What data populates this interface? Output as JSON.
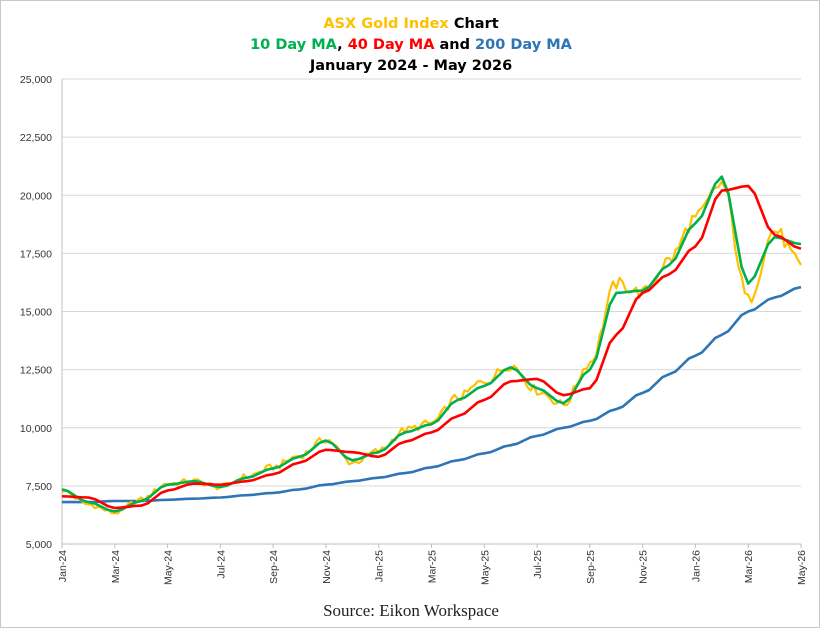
{
  "title": {
    "line1": {
      "highlight": "ASX Gold Index",
      "rest": " Chart"
    },
    "line2": {
      "ma10": "10 Day MA",
      "sep1": ", ",
      "ma40": "40 Day MA",
      "sep2": " and ",
      "ma200": "200 Day MA"
    },
    "line3": "January 2024 - May 2026"
  },
  "source": "Source: Eikon Workspace",
  "colors": {
    "index": "#FFC000",
    "ma10": "#00B050",
    "ma40": "#FF0000",
    "ma200": "#2E75B6",
    "grid": "#d9d9d9",
    "text": "#000000"
  },
  "chart_data": {
    "type": "line",
    "title": "ASX Gold Index Chart",
    "subtitle": "10 Day MA, 40 Day MA and 200 Day MA — January 2024 - May 2026",
    "ylim": [
      5000,
      25000
    ],
    "y_ticks": [
      "5,000",
      "7,500",
      "10,000",
      "12,500",
      "15,000",
      "17,500",
      "20,000",
      "22,500",
      "25,000"
    ],
    "y_tick_values": [
      5000,
      7500,
      10000,
      12500,
      15000,
      17500,
      20000,
      22500,
      25000
    ],
    "x_ticks": [
      "Jan-24",
      "Mar-24",
      "May-24",
      "Jul-24",
      "Sep-24",
      "Nov-24",
      "Jan-25",
      "Mar-25",
      "May-25",
      "Jul-25",
      "Sep-25",
      "Nov-25",
      "Jan-26",
      "Mar-26",
      "May-26"
    ],
    "x_months": [
      "2024-01",
      "2024-02",
      "2024-03",
      "2024-04",
      "2024-05",
      "2024-06",
      "2024-07",
      "2024-08",
      "2024-09",
      "2024-10",
      "2024-11",
      "2024-12",
      "2025-01",
      "2025-02",
      "2025-03",
      "2025-04",
      "2025-05",
      "2025-06",
      "2025-07",
      "2025-08",
      "2025-09",
      "2025-10",
      "2025-11",
      "2025-12",
      "2026-01",
      "2026-02",
      "2026-03",
      "2026-04",
      "2026-05"
    ],
    "grid": true,
    "series": [
      {
        "name": "ASX Gold Index",
        "color": "#FFC000",
        "values": [
          7300,
          6700,
          6350,
          6900,
          7600,
          7700,
          7450,
          7900,
          8300,
          8800,
          9500,
          8500,
          9000,
          9900,
          10200,
          11300,
          12000,
          12700,
          11600,
          11000,
          12800,
          16200,
          15800,
          17200,
          19000,
          20500,
          15500,
          18500,
          17000
        ]
      },
      {
        "name": "10 Day MA",
        "color": "#00B050",
        "values": [
          7350,
          6800,
          6400,
          6850,
          7550,
          7700,
          7450,
          7850,
          8250,
          8750,
          9450,
          8600,
          8950,
          9800,
          10150,
          11200,
          11800,
          12600,
          11700,
          11050,
          12500,
          15800,
          15900,
          17000,
          18800,
          20800,
          16200,
          18200,
          17900
        ]
      },
      {
        "name": "40 Day MA",
        "color": "#FF0000",
        "values": [
          7050,
          7000,
          6550,
          6650,
          7300,
          7600,
          7550,
          7700,
          8000,
          8500,
          9050,
          8950,
          8750,
          9400,
          9800,
          10500,
          11200,
          12000,
          12100,
          11400,
          11700,
          14000,
          15800,
          16600,
          17800,
          20200,
          20400,
          18300,
          17700
        ]
      },
      {
        "name": "200 Day MA",
        "color": "#2E75B6",
        "values": [
          6800,
          6800,
          6850,
          6850,
          6900,
          6950,
          7000,
          7100,
          7200,
          7350,
          7550,
          7700,
          7850,
          8050,
          8300,
          8600,
          8900,
          9250,
          9650,
          10000,
          10300,
          10800,
          11500,
          12300,
          13100,
          14000,
          15000,
          15600,
          16050
        ]
      }
    ]
  }
}
